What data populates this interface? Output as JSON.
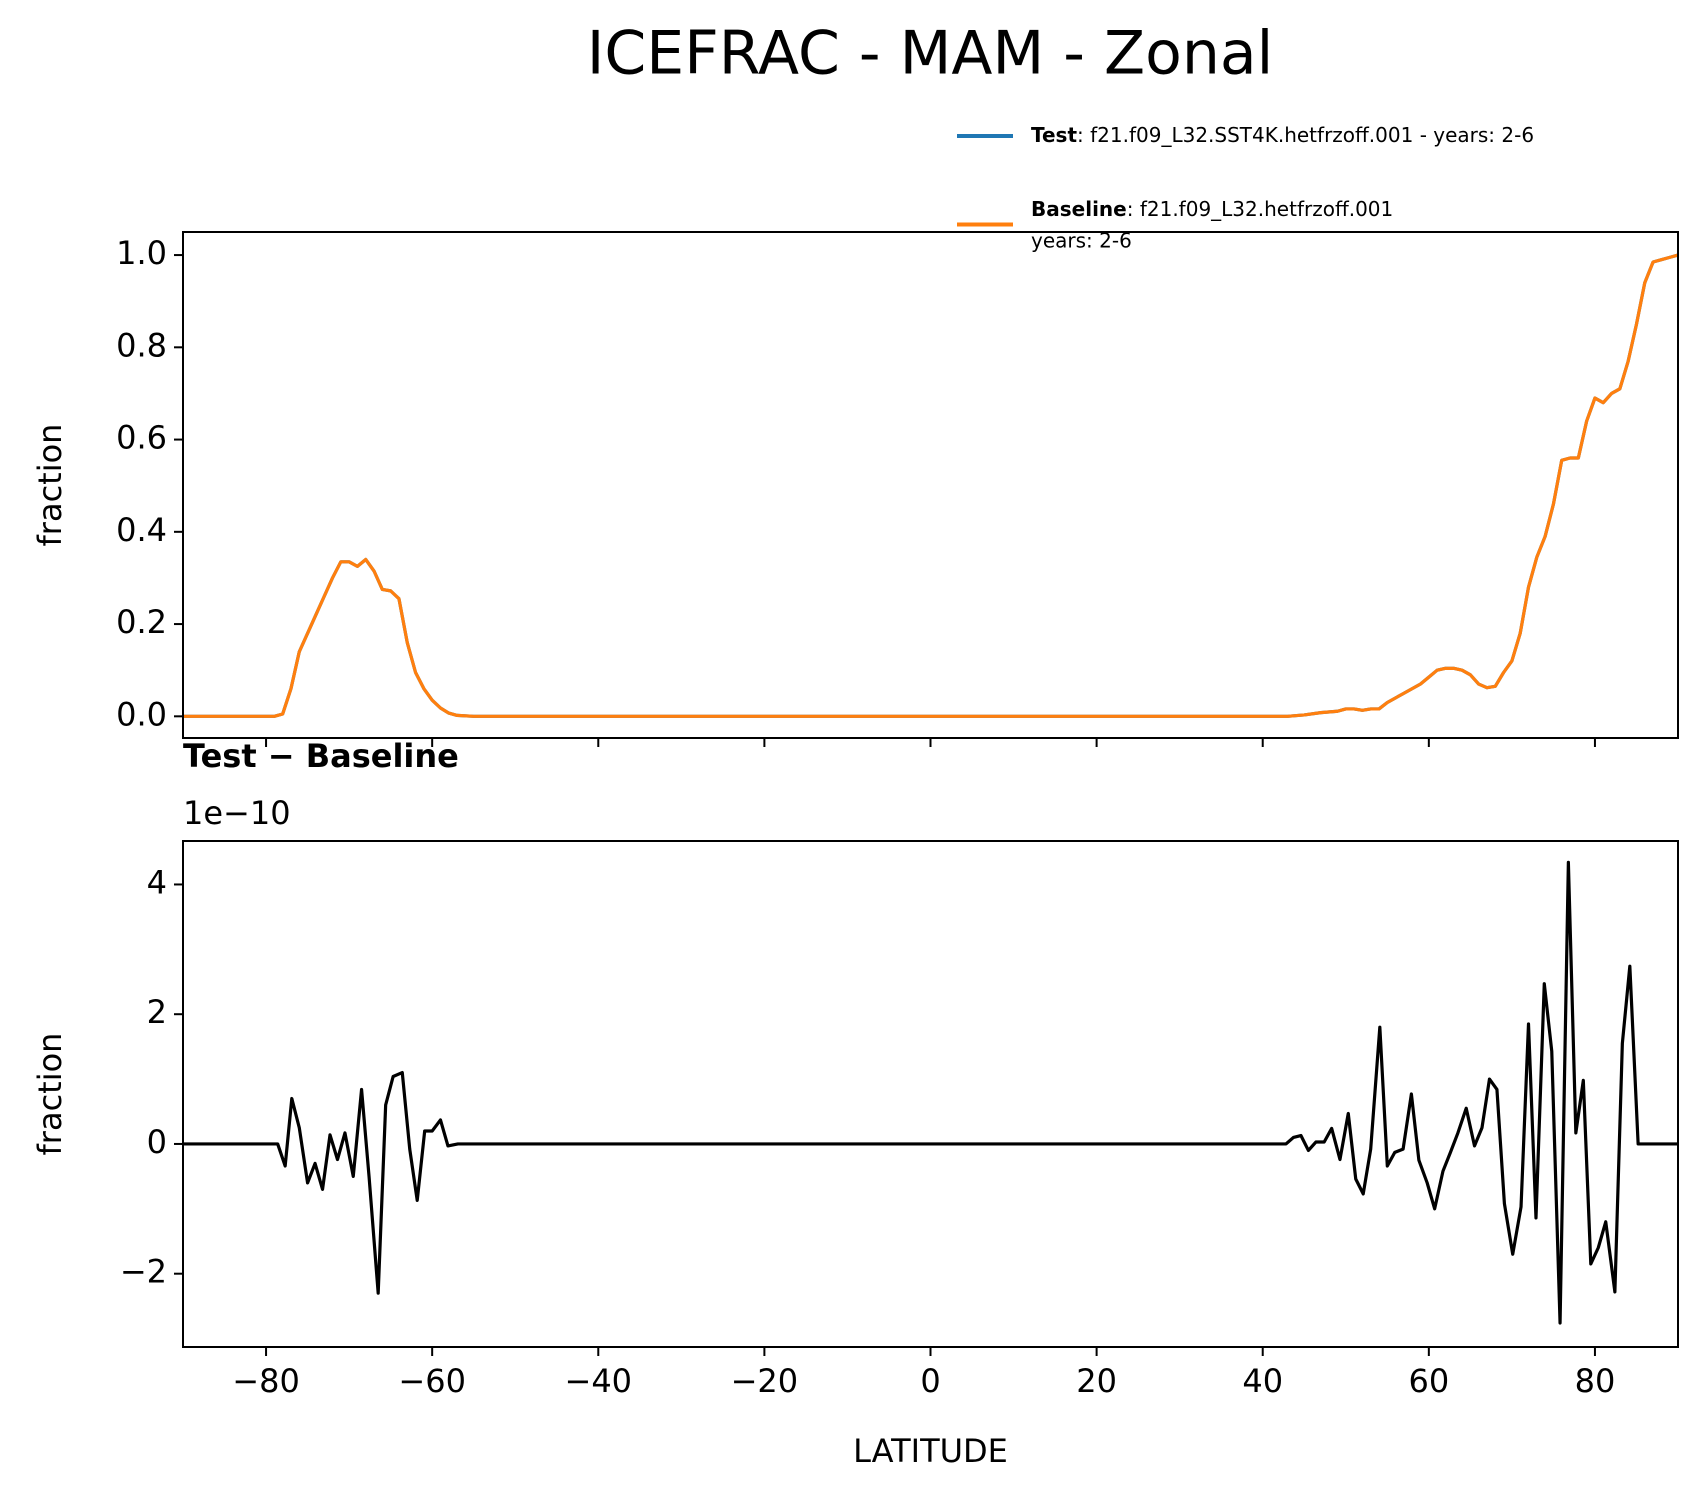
{
  "title": "ICEFRAC - MAM - Zonal",
  "chart_data": [
    {
      "type": "line",
      "ylabel": "fraction",
      "x": [
        -90,
        -79,
        -78,
        -77,
        -76,
        -75,
        -74,
        -73,
        -72,
        -71,
        -70,
        -69,
        -68,
        -67,
        -66,
        -65,
        -64,
        -63,
        -62,
        -61,
        -60,
        -59,
        -58,
        -57,
        -55,
        43,
        45,
        47,
        49,
        50,
        51,
        52,
        53,
        54,
        55,
        57,
        58,
        59,
        60,
        61,
        62,
        63,
        64,
        65,
        66,
        67,
        68,
        69,
        70,
        71,
        72,
        73,
        74,
        75,
        76,
        77,
        78,
        79,
        80,
        81,
        82,
        83,
        84,
        85,
        86,
        87,
        88,
        89,
        90
      ],
      "series": [
        {
          "name": "Test",
          "legend_text": ": f21.f09_L32.SST4K.hetfrzoff.001 - years: 2-6",
          "color": "#1f77b4",
          "values": [
            0,
            0,
            0.005,
            0.06,
            0.14,
            0.18,
            0.22,
            0.26,
            0.3,
            0.335,
            0.335,
            0.325,
            0.34,
            0.315,
            0.275,
            0.272,
            0.255,
            0.16,
            0.095,
            0.06,
            0.035,
            0.018,
            0.007,
            0.002,
            0,
            0,
            0.003,
            0.008,
            0.011,
            0.016,
            0.016,
            0.013,
            0.016,
            0.016,
            0.03,
            0.05,
            0.06,
            0.07,
            0.085,
            0.1,
            0.104,
            0.104,
            0.1,
            0.09,
            0.07,
            0.062,
            0.065,
            0.095,
            0.12,
            0.18,
            0.28,
            0.345,
            0.39,
            0.46,
            0.555,
            0.56,
            0.56,
            0.64,
            0.69,
            0.68,
            0.7,
            0.71,
            0.77,
            0.85,
            0.94,
            0.985,
            0.99,
            0.995,
            1.0
          ]
        },
        {
          "name": "Baseline",
          "legend_text": [
            ": f21.f09_L32.hetfrzoff.001",
            "years: 2-6"
          ],
          "color": "#ff7f0e",
          "values": [
            0,
            0,
            0.005,
            0.06,
            0.14,
            0.18,
            0.22,
            0.26,
            0.3,
            0.335,
            0.335,
            0.325,
            0.34,
            0.315,
            0.275,
            0.272,
            0.255,
            0.16,
            0.095,
            0.06,
            0.035,
            0.018,
            0.007,
            0.002,
            0,
            0,
            0.003,
            0.008,
            0.011,
            0.016,
            0.016,
            0.013,
            0.016,
            0.016,
            0.03,
            0.05,
            0.06,
            0.07,
            0.085,
            0.1,
            0.104,
            0.104,
            0.1,
            0.09,
            0.07,
            0.062,
            0.065,
            0.095,
            0.12,
            0.18,
            0.28,
            0.345,
            0.39,
            0.46,
            0.555,
            0.56,
            0.56,
            0.64,
            0.69,
            0.68,
            0.7,
            0.71,
            0.77,
            0.85,
            0.94,
            0.985,
            0.99,
            0.995,
            1.0
          ]
        }
      ],
      "xlim": [
        -90,
        90
      ],
      "xticks": [
        -80,
        -60,
        -40,
        -20,
        0,
        20,
        40,
        60,
        80
      ],
      "ylim": [
        -0.047,
        1.05
      ],
      "yticks": [
        {
          "value": 0,
          "label": "0.0"
        },
        {
          "value": 0.2,
          "label": "0.2"
        },
        {
          "value": 0.4,
          "label": "0.4"
        },
        {
          "value": 0.6,
          "label": "0.6"
        },
        {
          "value": 0.8,
          "label": "0.8"
        },
        {
          "value": 1.0,
          "label": "1.0"
        }
      ],
      "legend": "upper right"
    },
    {
      "type": "line",
      "title": "Test − Baseline",
      "offset_label": "1e−10",
      "xlabel": "LATITUDE",
      "ylabel": "fraction",
      "x": [
        -90,
        -78.6,
        -77.7,
        -76.9,
        -76,
        -75,
        -74.1,
        -73.2,
        -72.3,
        -71.4,
        -70.5,
        -69.5,
        -68.5,
        -67.6,
        -66.5,
        -65.6,
        -64.7,
        -63.6,
        -62.7,
        -61.8,
        -60.9,
        -60,
        -59,
        -58.1,
        -56.9,
        42.8,
        43.7,
        44.6,
        45.5,
        46.4,
        47.4,
        48.3,
        49.3,
        50.3,
        51.2,
        52.1,
        53,
        54.1,
        55,
        55.9,
        56.9,
        57.9,
        58.8,
        59.8,
        60.7,
        61.7,
        62.6,
        63.5,
        64.5,
        65.5,
        66.4,
        67.3,
        68.2,
        69.1,
        70.1,
        71.1,
        72,
        72.9,
        73.9,
        74.8,
        75.8,
        76.8,
        77.7,
        78.6,
        79.5,
        80.4,
        81.3,
        82.4,
        83.3,
        84.2,
        85.2,
        90
      ],
      "series": [
        {
          "name": "Test − Baseline",
          "color": "#000000",
          "values": [
            0,
            0,
            -0.34,
            0.7,
            0.25,
            -0.6,
            -0.3,
            -0.7,
            0.14,
            -0.24,
            0.17,
            -0.5,
            0.84,
            -0.5,
            -2.3,
            0.6,
            1.04,
            1.1,
            -0.08,
            -0.87,
            0.2,
            0.2,
            0.37,
            -0.03,
            0,
            0,
            0.1,
            0.13,
            -0.1,
            0.03,
            0.03,
            0.24,
            -0.24,
            0.47,
            -0.54,
            -0.77,
            -0.08,
            1.8,
            -0.34,
            -0.13,
            -0.08,
            0.77,
            -0.25,
            -0.6,
            -1.0,
            -0.42,
            -0.13,
            0.17,
            0.55,
            -0.03,
            0.25,
            1.0,
            0.84,
            -0.92,
            -1.7,
            -0.97,
            1.85,
            -1.14,
            2.47,
            1.43,
            -2.76,
            4.34,
            0.17,
            0.98,
            -1.85,
            -1.6,
            -1.2,
            -2.28,
            1.55,
            2.74,
            0,
            0
          ]
        }
      ],
      "xlim": [
        -90,
        90
      ],
      "xticks": [
        {
          "value": -80,
          "label": "−80"
        },
        {
          "value": -60,
          "label": "−60"
        },
        {
          "value": -40,
          "label": "−40"
        },
        {
          "value": -20,
          "label": "−20"
        },
        0,
        20,
        40,
        60,
        80
      ],
      "ylim": [
        -3.13,
        4.67
      ],
      "yticks": [
        {
          "value": -2,
          "label": "−2"
        },
        0,
        2,
        4
      ]
    }
  ]
}
